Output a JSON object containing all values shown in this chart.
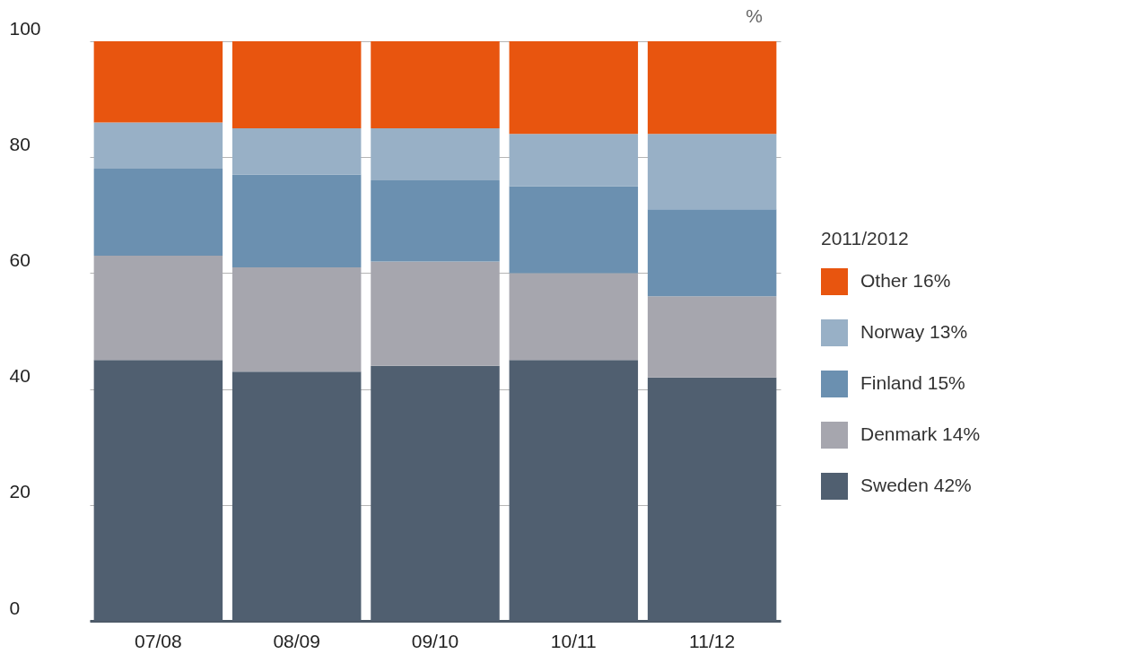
{
  "chart_data": {
    "type": "bar",
    "stacked": true,
    "ylabel": "%",
    "legend_title": "2011/2012",
    "categories": [
      "07/08",
      "08/09",
      "09/10",
      "10/11",
      "11/12"
    ],
    "series": [
      {
        "name": "Sweden 42%",
        "color": "#505f70",
        "values": [
          45,
          43,
          44,
          45,
          42
        ]
      },
      {
        "name": "Denmark 14%",
        "color": "#a6a6ae",
        "values": [
          18,
          18,
          18,
          15,
          14
        ]
      },
      {
        "name": "Finland 15%",
        "color": "#6b90b0",
        "values": [
          15,
          16,
          14,
          15,
          15
        ]
      },
      {
        "name": "Norway 13%",
        "color": "#98b0c6",
        "values": [
          8,
          8,
          9,
          9,
          13
        ]
      },
      {
        "name": "Other 16%",
        "color": "#e8550f",
        "values": [
          14,
          15,
          15,
          16,
          16
        ]
      }
    ],
    "ylim": [
      0,
      100
    ],
    "yticks": [
      0,
      20,
      40,
      60,
      80,
      100
    ],
    "grid": "y",
    "legend": "right"
  }
}
